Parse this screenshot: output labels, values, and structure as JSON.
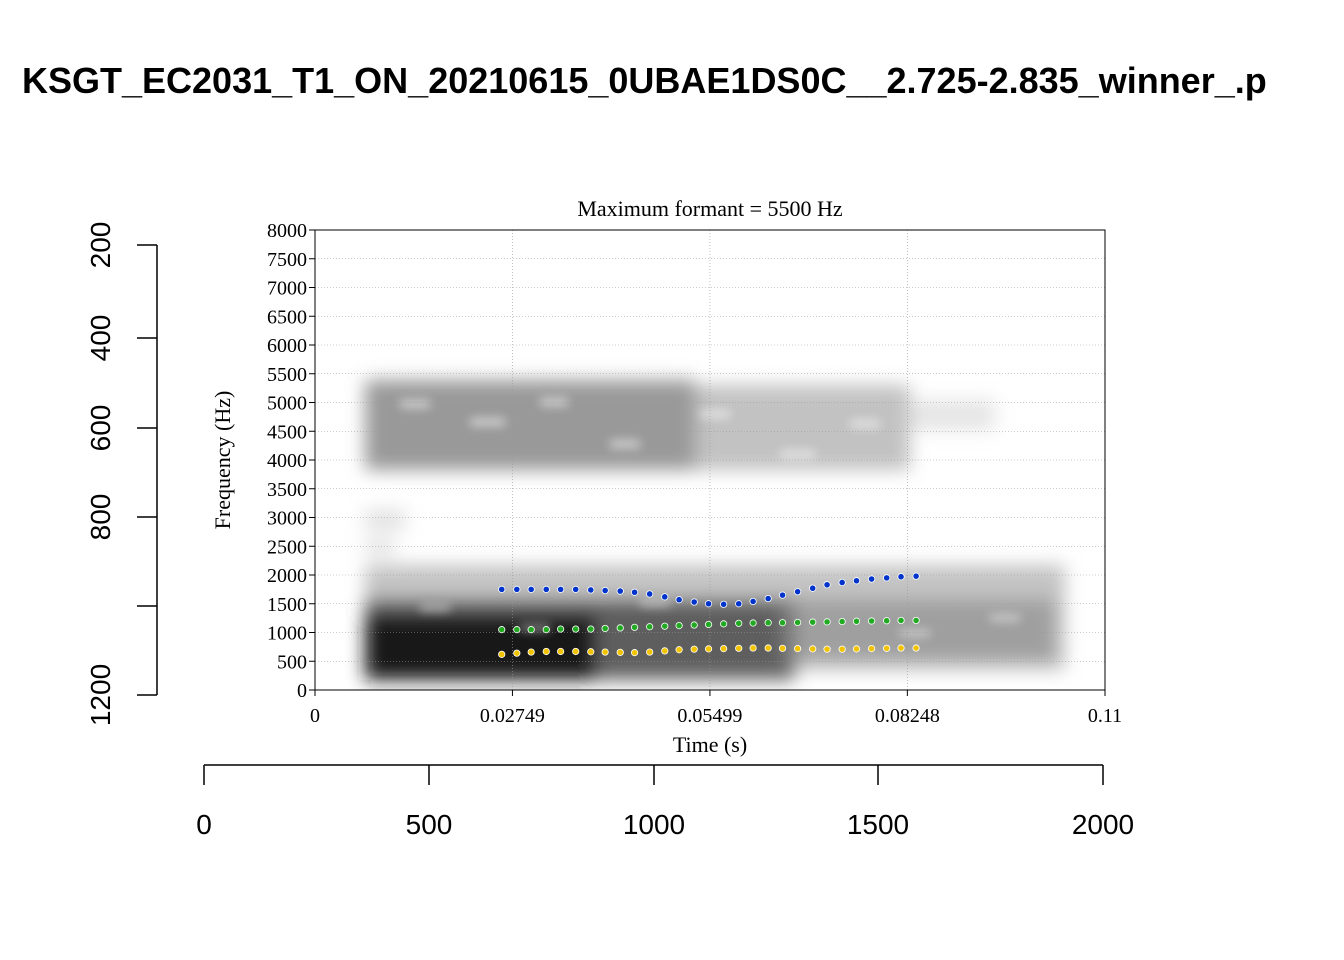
{
  "page_title": "KSGT_EC2031_T1_ON_20210615_0UBAE1DS0C__2.725-2.835_winner_.p",
  "outer_axes": {
    "x_ticks": [
      "0",
      "500",
      "1000",
      "1500",
      "2000"
    ],
    "y_ticks": [
      "200",
      "400",
      "600",
      "800",
      "1200"
    ]
  },
  "chart_data": {
    "type": "scatter",
    "title": "Maximum formant  =  5500 Hz",
    "xlabel": "Time (s)",
    "ylabel": "Frequency (Hz)",
    "xlim": [
      0,
      0.11
    ],
    "ylim": [
      0,
      8000
    ],
    "x_ticks": [
      "0",
      "0.02749",
      "0.05499",
      "0.08248",
      "0.11"
    ],
    "y_ticks": [
      "0",
      "500",
      "1000",
      "1500",
      "2000",
      "2500",
      "3000",
      "3500",
      "4000",
      "4500",
      "5000",
      "5500",
      "6000",
      "6500",
      "7000",
      "7500",
      "8000"
    ],
    "grid": true,
    "background": "grayscale spectrogram",
    "series": [
      {
        "color": "#f2c400",
        "x": [
          0.026,
          0.0281,
          0.0301,
          0.0322,
          0.0342,
          0.0363,
          0.0384,
          0.0404,
          0.0425,
          0.0445,
          0.0466,
          0.0487,
          0.0507,
          0.0528,
          0.0548,
          0.0569,
          0.059,
          0.061,
          0.0631,
          0.0651,
          0.0672,
          0.0693,
          0.0713,
          0.0734,
          0.0754,
          0.0775,
          0.0796,
          0.0816,
          0.0837
        ],
        "y": [
          620,
          640,
          660,
          670,
          670,
          670,
          665,
          660,
          655,
          650,
          660,
          680,
          700,
          710,
          715,
          720,
          725,
          730,
          730,
          725,
          720,
          715,
          710,
          710,
          715,
          720,
          725,
          730,
          730
        ]
      },
      {
        "color": "#22aa22",
        "x": [
          0.026,
          0.0281,
          0.0301,
          0.0322,
          0.0342,
          0.0363,
          0.0384,
          0.0404,
          0.0425,
          0.0445,
          0.0466,
          0.0487,
          0.0507,
          0.0528,
          0.0548,
          0.0569,
          0.059,
          0.061,
          0.0631,
          0.0651,
          0.0672,
          0.0693,
          0.0713,
          0.0734,
          0.0754,
          0.0775,
          0.0796,
          0.0816,
          0.0837
        ],
        "y": [
          1050,
          1050,
          1050,
          1050,
          1060,
          1060,
          1060,
          1070,
          1080,
          1090,
          1100,
          1110,
          1120,
          1130,
          1140,
          1150,
          1160,
          1165,
          1170,
          1170,
          1175,
          1180,
          1185,
          1190,
          1195,
          1200,
          1205,
          1210,
          1210
        ]
      },
      {
        "color": "#0033cc",
        "x": [
          0.026,
          0.0281,
          0.0301,
          0.0322,
          0.0342,
          0.0363,
          0.0384,
          0.0404,
          0.0425,
          0.0445,
          0.0466,
          0.0487,
          0.0507,
          0.0528,
          0.0548,
          0.0569,
          0.059,
          0.061,
          0.0631,
          0.0651,
          0.0672,
          0.0693,
          0.0713,
          0.0734,
          0.0754,
          0.0775,
          0.0796,
          0.0816,
          0.0837
        ],
        "y": [
          1750,
          1750,
          1750,
          1750,
          1750,
          1750,
          1740,
          1730,
          1720,
          1700,
          1670,
          1620,
          1570,
          1530,
          1500,
          1490,
          1500,
          1540,
          1590,
          1650,
          1710,
          1770,
          1830,
          1870,
          1900,
          1930,
          1950,
          1970,
          1980
        ]
      }
    ]
  }
}
